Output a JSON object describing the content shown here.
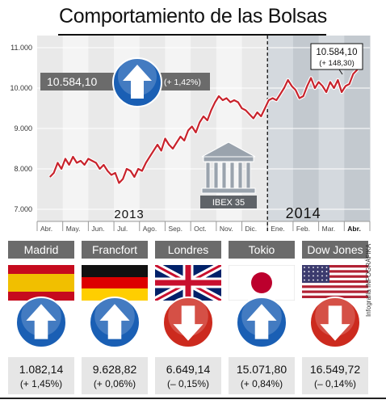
{
  "title": "Comportamiento de las Bolsas",
  "credit": "Infografía INFOGRÁFIKA",
  "index_label": "IBEX 35",
  "current_box": {
    "value": "10.584,10",
    "change": "(+ 148,30)"
  },
  "ytd_box": {
    "value": "10.584,10",
    "change": "(+ 1,42%)"
  },
  "colors": {
    "up_arrow": "#1a5fb4",
    "down_arrow": "#cc2a1e",
    "series": "#c8232c",
    "panel_dark": "#6b6b6b"
  },
  "chart_data": {
    "type": "line",
    "title": "Comportamiento de las Bolsas",
    "xlabel": "",
    "ylabel": "",
    "y_ticks": [
      "7.000",
      "8.000",
      "9.000",
      "10.000",
      "11.000"
    ],
    "y_tick_values": [
      7000,
      8000,
      9000,
      10000,
      11000
    ],
    "ylim": [
      6700,
      11300
    ],
    "months": [
      "Abr.",
      "May.",
      "Jun.",
      "Jul.",
      "Ago.",
      "Sep.",
      "Oct.",
      "Nov.",
      "Dic.",
      "Ene.",
      "Feb.",
      "Mar.",
      "Abr."
    ],
    "year_labels": [
      {
        "label": "2013",
        "month_index": 3.6
      },
      {
        "label": "2014",
        "month_index": 10.4
      }
    ],
    "year_split_month_index": 9,
    "grid": true,
    "series": [
      {
        "values": [
          [
            0.0,
            7800
          ],
          [
            0.15,
            7900
          ],
          [
            0.3,
            8150
          ],
          [
            0.45,
            8000
          ],
          [
            0.6,
            8250
          ],
          [
            0.75,
            8100
          ],
          [
            0.9,
            8300
          ],
          [
            1.05,
            8150
          ],
          [
            1.2,
            8200
          ],
          [
            1.35,
            8100
          ],
          [
            1.5,
            8250
          ],
          [
            1.65,
            8200
          ],
          [
            1.8,
            8150
          ],
          [
            1.95,
            8000
          ],
          [
            2.1,
            8100
          ],
          [
            2.25,
            7950
          ],
          [
            2.4,
            7850
          ],
          [
            2.55,
            7900
          ],
          [
            2.7,
            7650
          ],
          [
            2.85,
            7750
          ],
          [
            3.0,
            8000
          ],
          [
            3.15,
            7950
          ],
          [
            3.3,
            7800
          ],
          [
            3.45,
            8000
          ],
          [
            3.6,
            7950
          ],
          [
            3.75,
            8150
          ],
          [
            3.9,
            8300
          ],
          [
            4.05,
            8450
          ],
          [
            4.2,
            8600
          ],
          [
            4.35,
            8450
          ],
          [
            4.5,
            8750
          ],
          [
            4.65,
            8600
          ],
          [
            4.8,
            8500
          ],
          [
            4.95,
            8650
          ],
          [
            5.1,
            8800
          ],
          [
            5.25,
            8700
          ],
          [
            5.4,
            8950
          ],
          [
            5.55,
            9050
          ],
          [
            5.7,
            8900
          ],
          [
            5.85,
            9150
          ],
          [
            6.0,
            9300
          ],
          [
            6.15,
            9200
          ],
          [
            6.3,
            9450
          ],
          [
            6.45,
            9650
          ],
          [
            6.6,
            9800
          ],
          [
            6.75,
            9700
          ],
          [
            6.9,
            9750
          ],
          [
            7.05,
            9650
          ],
          [
            7.2,
            9700
          ],
          [
            7.35,
            9650
          ],
          [
            7.5,
            9500
          ],
          [
            7.65,
            9450
          ],
          [
            7.8,
            9350
          ],
          [
            7.95,
            9250
          ],
          [
            8.1,
            9400
          ],
          [
            8.25,
            9300
          ],
          [
            8.4,
            9500
          ],
          [
            8.55,
            9700
          ],
          [
            8.7,
            9750
          ],
          [
            8.85,
            9700
          ],
          [
            9.0,
            9850
          ],
          [
            9.15,
            10000
          ],
          [
            9.3,
            10200
          ],
          [
            9.45,
            10050
          ],
          [
            9.6,
            9950
          ],
          [
            9.75,
            9750
          ],
          [
            9.9,
            9800
          ],
          [
            10.05,
            10050
          ],
          [
            10.2,
            10250
          ],
          [
            10.35,
            10000
          ],
          [
            10.5,
            10150
          ],
          [
            10.65,
            10050
          ],
          [
            10.8,
            9900
          ],
          [
            10.95,
            10150
          ],
          [
            11.1,
            10000
          ],
          [
            11.25,
            10200
          ],
          [
            11.4,
            9900
          ],
          [
            11.55,
            10050
          ],
          [
            11.7,
            10100
          ],
          [
            11.85,
            10350
          ],
          [
            12.0,
            10450
          ],
          [
            12.1,
            10584
          ]
        ]
      }
    ]
  },
  "markets": [
    {
      "name": "Madrid",
      "value": "1.082,14",
      "change": "(+ 1,45%)",
      "direction": "up",
      "flag": "spain"
    },
    {
      "name": "Francfort",
      "value": "9.628,82",
      "change": "(+ 0,06%)",
      "direction": "up",
      "flag": "germany"
    },
    {
      "name": "Londres",
      "value": "6.649,14",
      "change": "(– 0,15%)",
      "direction": "down",
      "flag": "uk"
    },
    {
      "name": "Tokio",
      "value": "15.071,80",
      "change": "(+ 0,84%)",
      "direction": "up",
      "flag": "japan"
    },
    {
      "name": "Dow Jones",
      "value": "16.549,72",
      "change": "(– 0,14%)",
      "direction": "down",
      "flag": "usa"
    }
  ]
}
